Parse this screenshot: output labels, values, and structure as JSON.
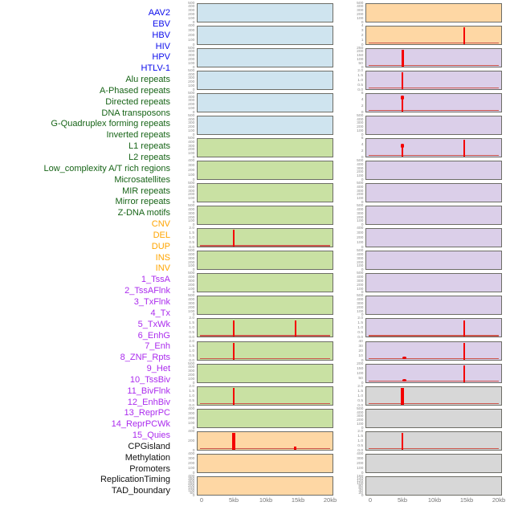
{
  "chart_data": {
    "type": "line",
    "title": "",
    "description": "Small-multiple genomic feature density tracks around a site, 0-20kb window; 44 tracks read column-major in two panel columns of 22 rows",
    "x_ticks": [
      "0",
      "5kb",
      "10kb",
      "15kb",
      "20kb"
    ],
    "x_range_kb": [
      0,
      20
    ],
    "legend_position": "none",
    "grid": false,
    "colors": {
      "spike_red": "#f40000",
      "baseline_red": "#cb564c",
      "tick_text": "#8a8a8a",
      "axis_text": "#767676",
      "panel_border": "#6d6d66"
    },
    "groups": {
      "virus": {
        "label_color": "#0b0bec",
        "panel_color": "#cfe4ef"
      },
      "repeat": {
        "label_color": "#176417",
        "panel_color": "#c9e1a3"
      },
      "sv": {
        "label_color": "#ffa500",
        "panel_color": "#fed7a4"
      },
      "chromatin": {
        "label_color": "#ab2bee",
        "panel_color": "#dbcfe9"
      },
      "other": {
        "label_color": "#111111",
        "panel_color": "#d7d7d7"
      }
    },
    "tracks": [
      {
        "name": "AAV2",
        "group": "virus",
        "col": 1,
        "yticks": [
          "500",
          "400",
          "300",
          "200",
          "100",
          "0"
        ],
        "spikes": [],
        "baseline": false
      },
      {
        "name": "EBV",
        "group": "virus",
        "col": 1,
        "yticks": [
          "400",
          "300",
          "200",
          "100",
          "0"
        ],
        "spikes": [],
        "baseline": false
      },
      {
        "name": "HBV",
        "group": "virus",
        "col": 1,
        "yticks": [
          "500",
          "400",
          "300",
          "200",
          "100",
          "0"
        ],
        "spikes": [],
        "baseline": false
      },
      {
        "name": "HIV",
        "group": "virus",
        "col": 1,
        "yticks": [
          "500",
          "400",
          "300",
          "200",
          "100",
          "0"
        ],
        "spikes": [],
        "baseline": false
      },
      {
        "name": "HPV",
        "group": "virus",
        "col": 1,
        "yticks": [
          "500",
          "400",
          "300",
          "200",
          "100",
          "0"
        ],
        "spikes": [],
        "baseline": false
      },
      {
        "name": "HTLV-1",
        "group": "virus",
        "col": 1,
        "yticks": [
          "500",
          "400",
          "300",
          "200",
          "100",
          "0"
        ],
        "spikes": [],
        "baseline": false
      },
      {
        "name": "Alu repeats",
        "group": "repeat",
        "col": 1,
        "yticks": [
          "500",
          "400",
          "300",
          "200",
          "100",
          "0"
        ],
        "spikes": [],
        "baseline": false
      },
      {
        "name": "A-Phased repeats",
        "group": "repeat",
        "col": 1,
        "yticks": [
          "400",
          "300",
          "200",
          "100",
          "0"
        ],
        "spikes": [],
        "baseline": false
      },
      {
        "name": "Directed repeats",
        "group": "repeat",
        "col": 1,
        "yticks": [
          "500",
          "400",
          "300",
          "200",
          "100",
          "0"
        ],
        "spikes": [],
        "baseline": false
      },
      {
        "name": "DNA transposons",
        "group": "repeat",
        "col": 1,
        "yticks": [
          "500",
          "400",
          "300",
          "200",
          "100",
          "0"
        ],
        "spikes": [],
        "baseline": false
      },
      {
        "name": "G-Quadruplex forming repeats",
        "group": "repeat",
        "col": 1,
        "yticks": [
          "2.0",
          "1.5",
          "1.0",
          "0.5",
          "0.0"
        ],
        "spikes": [
          {
            "kb": 5,
            "frac": 0.95,
            "w": 2
          }
        ],
        "baseline": true
      },
      {
        "name": "Inverted repeats",
        "group": "repeat",
        "col": 1,
        "yticks": [
          "500",
          "400",
          "300",
          "200",
          "100",
          "0"
        ],
        "spikes": [],
        "baseline": false
      },
      {
        "name": "L1 repeats",
        "group": "repeat",
        "col": 1,
        "yticks": [
          "500",
          "400",
          "300",
          "200",
          "100",
          "0"
        ],
        "spikes": [],
        "baseline": false
      },
      {
        "name": "L2 repeats",
        "group": "repeat",
        "col": 1,
        "yticks": [
          "500",
          "400",
          "300",
          "200",
          "100",
          "0"
        ],
        "spikes": [],
        "baseline": false
      },
      {
        "name": "Low_complexity A/T rich regions",
        "group": "repeat",
        "col": 1,
        "yticks": [
          "2.0",
          "1.5",
          "1.0",
          "0.5",
          "0.0"
        ],
        "spikes": [
          {
            "kb": 5,
            "frac": 0.95,
            "w": 2
          },
          {
            "kb": 14.6,
            "frac": 0.95,
            "w": 2
          }
        ],
        "baseline": true
      },
      {
        "name": "Microsatellites",
        "group": "repeat",
        "col": 1,
        "yticks": [
          "2.0",
          "1.5",
          "1.0",
          "0.5",
          "0.0"
        ],
        "spikes": [
          {
            "kb": 5,
            "frac": 0.95,
            "w": 2
          }
        ],
        "baseline": true
      },
      {
        "name": "MIR repeats",
        "group": "repeat",
        "col": 1,
        "yticks": [
          "500",
          "400",
          "300",
          "200",
          "100",
          "0"
        ],
        "spikes": [],
        "baseline": false
      },
      {
        "name": "Mirror repeats",
        "group": "repeat",
        "col": 1,
        "yticks": [
          "2.0",
          "1.5",
          "1.0",
          "0.5",
          "0.0"
        ],
        "spikes": [
          {
            "kb": 5,
            "frac": 0.95,
            "w": 2
          }
        ],
        "baseline": true
      },
      {
        "name": "Z-DNA motifs",
        "group": "repeat",
        "col": 1,
        "yticks": [
          "400",
          "300",
          "200",
          "100",
          "0"
        ],
        "spikes": [],
        "baseline": false
      },
      {
        "name": "CNV",
        "group": "sv",
        "col": 1,
        "yticks": [
          "400",
          "200",
          "0"
        ],
        "spikes": [
          {
            "kb": 5,
            "frac": 0.95,
            "w": 4
          },
          {
            "kb": 14.6,
            "frac": 0.16,
            "w": 3
          }
        ],
        "baseline": true
      },
      {
        "name": "DEL",
        "group": "sv",
        "col": 1,
        "yticks": [
          "400",
          "300",
          "200",
          "100",
          "0"
        ],
        "spikes": [],
        "baseline": false
      },
      {
        "name": "DUP",
        "group": "sv",
        "col": 1,
        "yticks": [
          "400",
          "350",
          "300",
          "250",
          "200",
          "150",
          "100",
          "50",
          "0"
        ],
        "spikes": [],
        "baseline": false
      },
      {
        "name": "INS",
        "group": "sv",
        "col": 2,
        "yticks": [
          "500",
          "400",
          "300",
          "200",
          "100",
          "0"
        ],
        "spikes": [],
        "baseline": false
      },
      {
        "name": "INV",
        "group": "sv",
        "col": 2,
        "yticks": [
          "4",
          "3",
          "2",
          "1",
          "0"
        ],
        "spikes": [
          {
            "kb": 14.6,
            "frac": 0.95,
            "w": 2
          }
        ],
        "baseline": true
      },
      {
        "name": "1_TssA",
        "group": "chromatin",
        "col": 2,
        "yticks": [
          "250",
          "200",
          "150",
          "100",
          "50",
          "0"
        ],
        "spikes": [
          {
            "kb": 5,
            "frac": 0.95,
            "w": 3
          }
        ],
        "baseline": true
      },
      {
        "name": "2_TssAFlnk",
        "group": "chromatin",
        "col": 2,
        "yticks": [
          "2.0",
          "1.5",
          "1.0",
          "0.5",
          "0.0"
        ],
        "spikes": [
          {
            "kb": 5,
            "frac": 0.95,
            "w": 2
          }
        ],
        "baseline": true
      },
      {
        "name": "3_TxFlnk",
        "group": "chromatin",
        "col": 2,
        "yticks": [
          "6",
          "4",
          "2",
          "0"
        ],
        "spikes": [
          {
            "kb": 5,
            "frac": 0.85,
            "w": 2,
            "head": true
          }
        ],
        "baseline": true
      },
      {
        "name": "4_Tx",
        "group": "chromatin",
        "col": 2,
        "yticks": [
          "500",
          "400",
          "300",
          "200",
          "100",
          "0"
        ],
        "spikes": [],
        "baseline": false
      },
      {
        "name": "5_TxWk",
        "group": "chromatin",
        "col": 2,
        "yticks": [
          "6",
          "4",
          "2",
          "0"
        ],
        "spikes": [
          {
            "kb": 5,
            "frac": 0.7,
            "w": 2,
            "head": true
          },
          {
            "kb": 14.6,
            "frac": 0.95,
            "w": 2
          }
        ],
        "baseline": true
      },
      {
        "name": "6_EnhG",
        "group": "chromatin",
        "col": 2,
        "yticks": [
          "500",
          "400",
          "300",
          "200",
          "100",
          "0"
        ],
        "spikes": [],
        "baseline": false
      },
      {
        "name": "7_Enh",
        "group": "chromatin",
        "col": 2,
        "yticks": [
          "500",
          "400",
          "300",
          "200",
          "100",
          "0"
        ],
        "spikes": [],
        "baseline": false
      },
      {
        "name": "8_ZNF_Rpts",
        "group": "chromatin",
        "col": 2,
        "yticks": [
          "500",
          "400",
          "300",
          "200",
          "100",
          "0"
        ],
        "spikes": [],
        "baseline": false
      },
      {
        "name": "9_Het",
        "group": "chromatin",
        "col": 2,
        "yticks": [
          "400",
          "300",
          "200",
          "100",
          "0"
        ],
        "spikes": [],
        "baseline": false
      },
      {
        "name": "10_TssBiv",
        "group": "chromatin",
        "col": 2,
        "yticks": [
          "500",
          "400",
          "300",
          "200",
          "100",
          "0"
        ],
        "spikes": [],
        "baseline": false
      },
      {
        "name": "11_BivFlnk",
        "group": "chromatin",
        "col": 2,
        "yticks": [
          "500",
          "400",
          "300",
          "200",
          "100",
          "0"
        ],
        "spikes": [],
        "baseline": false
      },
      {
        "name": "12_EnhBiv",
        "group": "chromatin",
        "col": 2,
        "yticks": [
          "500",
          "400",
          "300",
          "200",
          "100",
          "0"
        ],
        "spikes": [],
        "baseline": false
      },
      {
        "name": "13_ReprPC",
        "group": "chromatin",
        "col": 2,
        "yticks": [
          "2.0",
          "1.5",
          "1.0",
          "0.5",
          "0.0"
        ],
        "spikes": [
          {
            "kb": 14.6,
            "frac": 0.95,
            "w": 2
          }
        ],
        "baseline": true
      },
      {
        "name": "14_ReprPCWk",
        "group": "chromatin",
        "col": 2,
        "yticks": [
          "40",
          "30",
          "20",
          "10",
          "0"
        ],
        "spikes": [
          {
            "kb": 5.3,
            "frac": 0.15,
            "w": 5,
            "shape": "dot"
          },
          {
            "kb": 14.6,
            "frac": 0.95,
            "w": 2
          }
        ],
        "baseline": true
      },
      {
        "name": "15_Quies",
        "group": "chromatin",
        "col": 2,
        "yticks": [
          "200",
          "150",
          "100",
          "50",
          "0"
        ],
        "spikes": [
          {
            "kb": 5.3,
            "frac": 0.13,
            "w": 5,
            "shape": "dot"
          },
          {
            "kb": 14.6,
            "frac": 0.95,
            "w": 2
          }
        ],
        "baseline": true
      },
      {
        "name": "CPGisland",
        "group": "other",
        "col": 2,
        "yticks": [
          "2.0",
          "1.5",
          "1.0",
          "0.5",
          "0.0"
        ],
        "spikes": [
          {
            "kb": 5,
            "frac": 0.95,
            "w": 4
          }
        ],
        "baseline": true
      },
      {
        "name": "Methylation",
        "group": "other",
        "col": 2,
        "yticks": [
          "500",
          "400",
          "300",
          "200",
          "100",
          "0"
        ],
        "spikes": [],
        "baseline": false
      },
      {
        "name": "Promoters",
        "group": "other",
        "col": 2,
        "yticks": [
          "2.0",
          "1.5",
          "1.0",
          "0.5",
          "0.0"
        ],
        "spikes": [
          {
            "kb": 5,
            "frac": 0.95,
            "w": 1.5
          }
        ],
        "baseline": true
      },
      {
        "name": "ReplicationTiming",
        "group": "other",
        "col": 2,
        "yticks": [
          "400",
          "300",
          "200",
          "100",
          "0"
        ],
        "spikes": [],
        "baseline": false
      },
      {
        "name": "TAD_boundary",
        "group": "other",
        "col": 2,
        "yticks": [
          "160",
          "140",
          "120",
          "100",
          "80",
          "60",
          "40",
          "20",
          "0"
        ],
        "spikes": [],
        "baseline": false
      }
    ]
  }
}
